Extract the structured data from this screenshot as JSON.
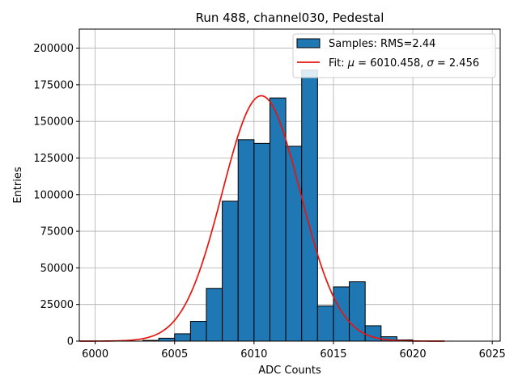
{
  "chart_data": {
    "type": "bar",
    "title": "Run 488, channel030, Pedestal",
    "xlabel": "ADC Counts",
    "ylabel": "Entries",
    "xlim": [
      5999,
      6025.5
    ],
    "ylim": [
      0,
      213000
    ],
    "grid": true,
    "legend_position": "top-right",
    "x_ticks": [
      6000,
      6005,
      6010,
      6015,
      6020,
      6025
    ],
    "y_ticks": [
      0,
      25000,
      50000,
      75000,
      100000,
      125000,
      150000,
      175000,
      200000
    ],
    "histogram": {
      "name": "Samples: RMS=2.44",
      "color": "#1f77b4",
      "edge_color": "#000000",
      "bins": [
        {
          "x0": 6003.0,
          "x1": 6004.0,
          "value": 500
        },
        {
          "x0": 6004.0,
          "x1": 6005.0,
          "value": 2000
        },
        {
          "x0": 6005.0,
          "x1": 6006.0,
          "value": 5000
        },
        {
          "x0": 6006.0,
          "x1": 6007.0,
          "value": 13500
        },
        {
          "x0": 6007.0,
          "x1": 6008.0,
          "value": 36000
        },
        {
          "x0": 6008.0,
          "x1": 6009.0,
          "value": 95500
        },
        {
          "x0": 6009.0,
          "x1": 6010.0,
          "value": 137500
        },
        {
          "x0": 6010.0,
          "x1": 6011.0,
          "value": 135000
        },
        {
          "x0": 6011.0,
          "x1": 6012.0,
          "value": 166000
        },
        {
          "x0": 6012.0,
          "x1": 6013.0,
          "value": 133000
        },
        {
          "x0": 6013.0,
          "x1": 6014.0,
          "value": 185000
        },
        {
          "x0": 6014.0,
          "x1": 6015.0,
          "value": 24000
        },
        {
          "x0": 6015.0,
          "x1": 6016.0,
          "value": 37000
        },
        {
          "x0": 6016.0,
          "x1": 6017.0,
          "value": 40500
        },
        {
          "x0": 6017.0,
          "x1": 6018.0,
          "value": 10500
        },
        {
          "x0": 6018.0,
          "x1": 6019.0,
          "value": 3000
        },
        {
          "x0": 6019.0,
          "x1": 6020.0,
          "value": 800
        }
      ]
    },
    "fit": {
      "name": "Fit: μ = 6010.458, σ = 2.456",
      "color": "#e8140f",
      "mu": 6010.458,
      "sigma": 2.456,
      "amplitude": 167500,
      "x_range": [
        5999.0,
        6022.0
      ]
    },
    "legend": {
      "samples_label": "Samples: RMS=2.44",
      "fit_prefix": "Fit: ",
      "fit_mu_symbol": "μ",
      "fit_mu_value": " = 6010.458, ",
      "fit_sigma_symbol": "σ",
      "fit_sigma_value": " = 2.456"
    }
  }
}
